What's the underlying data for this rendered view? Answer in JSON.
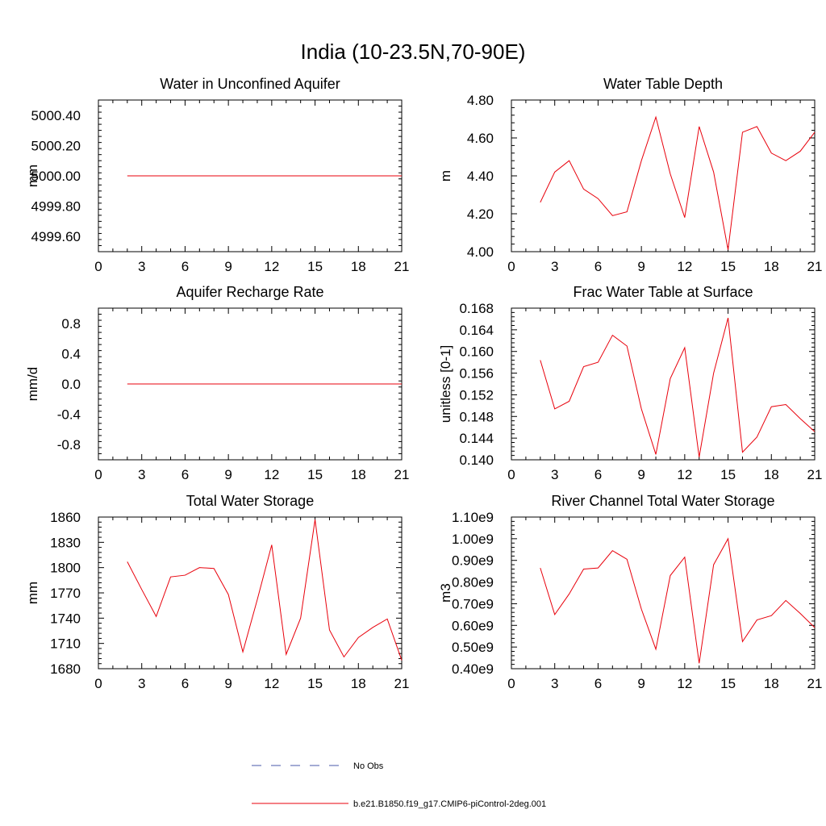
{
  "title": "India (10-23.5N,70-90E)",
  "legend": {
    "items": [
      {
        "label": "No Obs",
        "color": "#4a5aa8",
        "dash": true
      },
      {
        "label": "b.e21.B1850.f19_g17.CMIP6-piControl-2deg.001",
        "color": "#e8000b",
        "dash": false
      }
    ]
  },
  "chart_data": [
    {
      "type": "line",
      "title": "Water in Unconfined Aquifer",
      "ylabel": "mm",
      "xlim": [
        0,
        21
      ],
      "xticks": [
        0,
        3,
        6,
        9,
        12,
        15,
        18,
        21
      ],
      "ylim": [
        4999.5,
        5000.5
      ],
      "yticks": [
        4999.6,
        4999.8,
        5000.0,
        5000.2,
        5000.4
      ],
      "ytick_labels": [
        "4999.60",
        "4999.80",
        "5000.00",
        "5000.20",
        "5000.40"
      ],
      "series": [
        {
          "name": "b.e21.B1850.f19_g17.CMIP6-piControl-2deg.001",
          "color": "#e8000b",
          "x": [
            2,
            3,
            4,
            5,
            6,
            7,
            8,
            9,
            10,
            11,
            12,
            13,
            14,
            15,
            16,
            17,
            18,
            19,
            20,
            21
          ],
          "y": [
            5000,
            5000,
            5000,
            5000,
            5000,
            5000,
            5000,
            5000,
            5000,
            5000,
            5000,
            5000,
            5000,
            5000,
            5000,
            5000,
            5000,
            5000,
            5000,
            5000
          ]
        }
      ]
    },
    {
      "type": "line",
      "title": "Water Table Depth",
      "ylabel": "m",
      "xlim": [
        0,
        21
      ],
      "xticks": [
        0,
        3,
        6,
        9,
        12,
        15,
        18,
        21
      ],
      "ylim": [
        4.0,
        4.8
      ],
      "yticks": [
        4.0,
        4.2,
        4.4,
        4.6,
        4.8
      ],
      "ytick_labels": [
        "4.00",
        "4.20",
        "4.40",
        "4.60",
        "4.80"
      ],
      "series": [
        {
          "name": "b.e21.B1850.f19_g17.CMIP6-piControl-2deg.001",
          "color": "#e8000b",
          "x": [
            2,
            3,
            4,
            5,
            6,
            7,
            8,
            9,
            10,
            11,
            12,
            13,
            14,
            15,
            16,
            17,
            18,
            19,
            20,
            21
          ],
          "y": [
            4.26,
            4.42,
            4.48,
            4.33,
            4.28,
            4.19,
            4.21,
            4.48,
            4.71,
            4.41,
            4.18,
            4.66,
            4.42,
            4.01,
            4.63,
            4.66,
            4.52,
            4.48,
            4.53,
            4.63
          ]
        }
      ]
    },
    {
      "type": "line",
      "title": "Aquifer Recharge Rate",
      "ylabel": "mm/d",
      "xlim": [
        0,
        21
      ],
      "xticks": [
        0,
        3,
        6,
        9,
        12,
        15,
        18,
        21
      ],
      "ylim": [
        -1.0,
        1.0
      ],
      "yticks": [
        -0.8,
        -0.4,
        0.0,
        0.4,
        0.8
      ],
      "ytick_labels": [
        "-0.8",
        "-0.4",
        "0.0",
        "0.4",
        "0.8"
      ],
      "series": [
        {
          "name": "b.e21.B1850.f19_g17.CMIP6-piControl-2deg.001",
          "color": "#e8000b",
          "x": [
            2,
            3,
            4,
            5,
            6,
            7,
            8,
            9,
            10,
            11,
            12,
            13,
            14,
            15,
            16,
            17,
            18,
            19,
            20,
            21
          ],
          "y": [
            0,
            0,
            0,
            0,
            0,
            0,
            0,
            0,
            0,
            0,
            0,
            0,
            0,
            0,
            0,
            0,
            0,
            0,
            0,
            0
          ]
        }
      ]
    },
    {
      "type": "line",
      "title": "Frac Water Table at Surface",
      "ylabel": "unitless [0-1]",
      "xlim": [
        0,
        21
      ],
      "xticks": [
        0,
        3,
        6,
        9,
        12,
        15,
        18,
        21
      ],
      "ylim": [
        0.14,
        0.168
      ],
      "yticks": [
        0.14,
        0.144,
        0.148,
        0.152,
        0.156,
        0.16,
        0.164,
        0.168
      ],
      "ytick_labels": [
        "0.140",
        "0.144",
        "0.148",
        "0.152",
        "0.156",
        "0.160",
        "0.164",
        "0.168"
      ],
      "series": [
        {
          "name": "b.e21.B1850.f19_g17.CMIP6-piControl-2deg.001",
          "color": "#e8000b",
          "x": [
            2,
            3,
            4,
            5,
            6,
            7,
            8,
            9,
            10,
            11,
            12,
            13,
            14,
            15,
            16,
            17,
            18,
            19,
            20,
            21
          ],
          "y": [
            0.1584,
            0.1494,
            0.1508,
            0.1572,
            0.158,
            0.163,
            0.161,
            0.1494,
            0.141,
            0.155,
            0.1607,
            0.1405,
            0.156,
            0.1662,
            0.1414,
            0.1442,
            0.1498,
            0.1502,
            0.1476,
            0.1452
          ]
        }
      ]
    },
    {
      "type": "line",
      "title": "Total Water Storage",
      "ylabel": "mm",
      "xlim": [
        0,
        21
      ],
      "xticks": [
        0,
        3,
        6,
        9,
        12,
        15,
        18,
        21
      ],
      "ylim": [
        1680,
        1860
      ],
      "yticks": [
        1680,
        1710,
        1740,
        1770,
        1800,
        1830,
        1860
      ],
      "ytick_labels": [
        "1680",
        "1710",
        "1740",
        "1770",
        "1800",
        "1830",
        "1860"
      ],
      "series": [
        {
          "name": "b.e21.B1850.f19_g17.CMIP6-piControl-2deg.001",
          "color": "#e8000b",
          "x": [
            2,
            3,
            4,
            5,
            6,
            7,
            8,
            9,
            10,
            11,
            12,
            13,
            14,
            15,
            16,
            17,
            18,
            19,
            20,
            21
          ],
          "y": [
            1807,
            1774,
            1742,
            1789,
            1791,
            1800,
            1799,
            1768,
            1700,
            1762,
            1827,
            1697,
            1740,
            1857,
            1726,
            1694,
            1717,
            1729,
            1739,
            1690
          ]
        }
      ]
    },
    {
      "type": "line",
      "title": "River Channel Total Water Storage",
      "ylabel": "m3",
      "xlim": [
        0,
        21
      ],
      "xticks": [
        0,
        3,
        6,
        9,
        12,
        15,
        18,
        21
      ],
      "ylim": [
        400000000.0,
        1100000000.0
      ],
      "yticks": [
        400000000.0,
        500000000.0,
        600000000.0,
        700000000.0,
        800000000.0,
        900000000.0,
        1000000000.0,
        1100000000.0
      ],
      "ytick_labels": [
        "0.40e9",
        "0.50e9",
        "0.60e9",
        "0.70e9",
        "0.80e9",
        "0.90e9",
        "1.00e9",
        "1.10e9"
      ],
      "series": [
        {
          "name": "b.e21.B1850.f19_g17.CMIP6-piControl-2deg.001",
          "color": "#e8000b",
          "x": [
            2,
            3,
            4,
            5,
            6,
            7,
            8,
            9,
            10,
            11,
            12,
            13,
            14,
            15,
            16,
            17,
            18,
            19,
            20,
            21
          ],
          "y": [
            865000000.0,
            650000000.0,
            745000000.0,
            860000000.0,
            865000000.0,
            945000000.0,
            905000000.0,
            675000000.0,
            490000000.0,
            830000000.0,
            915000000.0,
            425000000.0,
            880000000.0,
            1000000000.0,
            525000000.0,
            625000000.0,
            645000000.0,
            715000000.0,
            655000000.0,
            590000000.0
          ]
        }
      ]
    }
  ]
}
